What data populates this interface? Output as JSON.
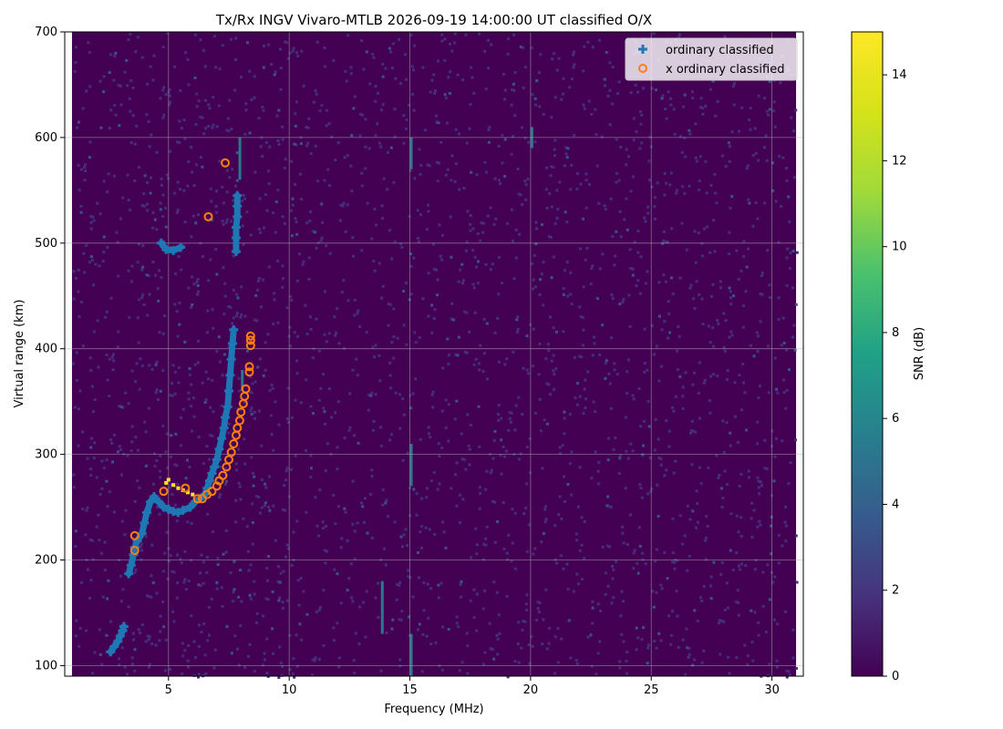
{
  "chart_data": {
    "type": "scatter",
    "title": "Tx/Rx INGV Vivaro-MTLB 2026-09-19 14:00:00  UT classified O/X",
    "xlabel": "Frequency (MHz)",
    "ylabel": "Virtual range (km)",
    "xlim": [
      0.7,
      31.3
    ],
    "ylim": [
      90,
      700
    ],
    "xticks": [
      5,
      10,
      15,
      20,
      25,
      30
    ],
    "yticks": [
      100,
      200,
      300,
      400,
      500,
      600,
      700
    ],
    "grid": true,
    "legend_position": "top-right",
    "background": {
      "description_colormap": "viridis",
      "x_extent": [
        1.0,
        31.0
      ],
      "y_extent": [
        90,
        700
      ],
      "noise_level_db": 0.3
    },
    "colorbar": {
      "label": "SNR (dB)",
      "min": 0,
      "max": 15,
      "ticks": [
        0,
        2,
        4,
        6,
        8,
        10,
        12,
        14
      ]
    },
    "colors": {
      "ordinary": "#1f77b4",
      "extraordinary": "#ff7f0e",
      "background_low": "#440154",
      "grid": "#b0b0b0"
    },
    "series": [
      {
        "name": "ordinary classified",
        "marker": "plus",
        "color": "#1f77b4",
        "points": [
          [
            2.6,
            113
          ],
          [
            2.75,
            118
          ],
          [
            2.9,
            123
          ],
          [
            3.0,
            128
          ],
          [
            3.1,
            133
          ],
          [
            3.15,
            137
          ],
          [
            3.35,
            187
          ],
          [
            3.45,
            195
          ],
          [
            3.55,
            205
          ],
          [
            3.6,
            212
          ],
          [
            3.7,
            218
          ],
          [
            3.9,
            225
          ],
          [
            4.0,
            235
          ],
          [
            4.1,
            245
          ],
          [
            4.25,
            255
          ],
          [
            4.4,
            260
          ],
          [
            4.6,
            255
          ],
          [
            4.8,
            250
          ],
          [
            5.0,
            248
          ],
          [
            5.2,
            246
          ],
          [
            5.4,
            245
          ],
          [
            5.6,
            247
          ],
          [
            5.9,
            250
          ],
          [
            6.1,
            255
          ],
          [
            6.3,
            258
          ],
          [
            6.5,
            262
          ],
          [
            6.6,
            268
          ],
          [
            6.7,
            275
          ],
          [
            6.8,
            282
          ],
          [
            6.9,
            288
          ],
          [
            7.0,
            295
          ],
          [
            7.1,
            305
          ],
          [
            7.2,
            315
          ],
          [
            7.3,
            325
          ],
          [
            7.35,
            335
          ],
          [
            7.45,
            345
          ],
          [
            7.5,
            360
          ],
          [
            7.55,
            375
          ],
          [
            7.6,
            390
          ],
          [
            7.65,
            405
          ],
          [
            7.7,
            418
          ],
          [
            4.7,
            500
          ],
          [
            4.9,
            494
          ],
          [
            5.2,
            493
          ],
          [
            5.5,
            496
          ],
          [
            7.8,
            492
          ],
          [
            7.8,
            505
          ],
          [
            7.8,
            515
          ],
          [
            7.85,
            525
          ],
          [
            7.85,
            535
          ],
          [
            7.85,
            545
          ]
        ]
      },
      {
        "name": "x ordinary classified",
        "marker": "circle",
        "color": "#ff7f0e",
        "points": [
          [
            3.6,
            209
          ],
          [
            3.6,
            223
          ],
          [
            4.8,
            265
          ],
          [
            5.7,
            268
          ],
          [
            6.2,
            258
          ],
          [
            6.4,
            258
          ],
          [
            6.6,
            262
          ],
          [
            6.8,
            265
          ],
          [
            7.0,
            270
          ],
          [
            7.1,
            275
          ],
          [
            7.25,
            280
          ],
          [
            7.4,
            288
          ],
          [
            7.5,
            295
          ],
          [
            7.6,
            302
          ],
          [
            7.7,
            310
          ],
          [
            7.8,
            318
          ],
          [
            7.85,
            325
          ],
          [
            7.95,
            332
          ],
          [
            8.0,
            340
          ],
          [
            8.1,
            348
          ],
          [
            8.15,
            355
          ],
          [
            8.2,
            362
          ],
          [
            8.35,
            378
          ],
          [
            8.35,
            383
          ],
          [
            8.4,
            403
          ],
          [
            8.4,
            408
          ],
          [
            8.4,
            412
          ],
          [
            6.65,
            525
          ],
          [
            7.35,
            576
          ]
        ]
      }
    ],
    "high_snr_points": [
      [
        4.9,
        273
      ],
      [
        5.0,
        276
      ],
      [
        5.2,
        271
      ],
      [
        5.4,
        268
      ],
      [
        5.6,
        266
      ],
      [
        5.8,
        264
      ],
      [
        6.0,
        262
      ]
    ]
  }
}
